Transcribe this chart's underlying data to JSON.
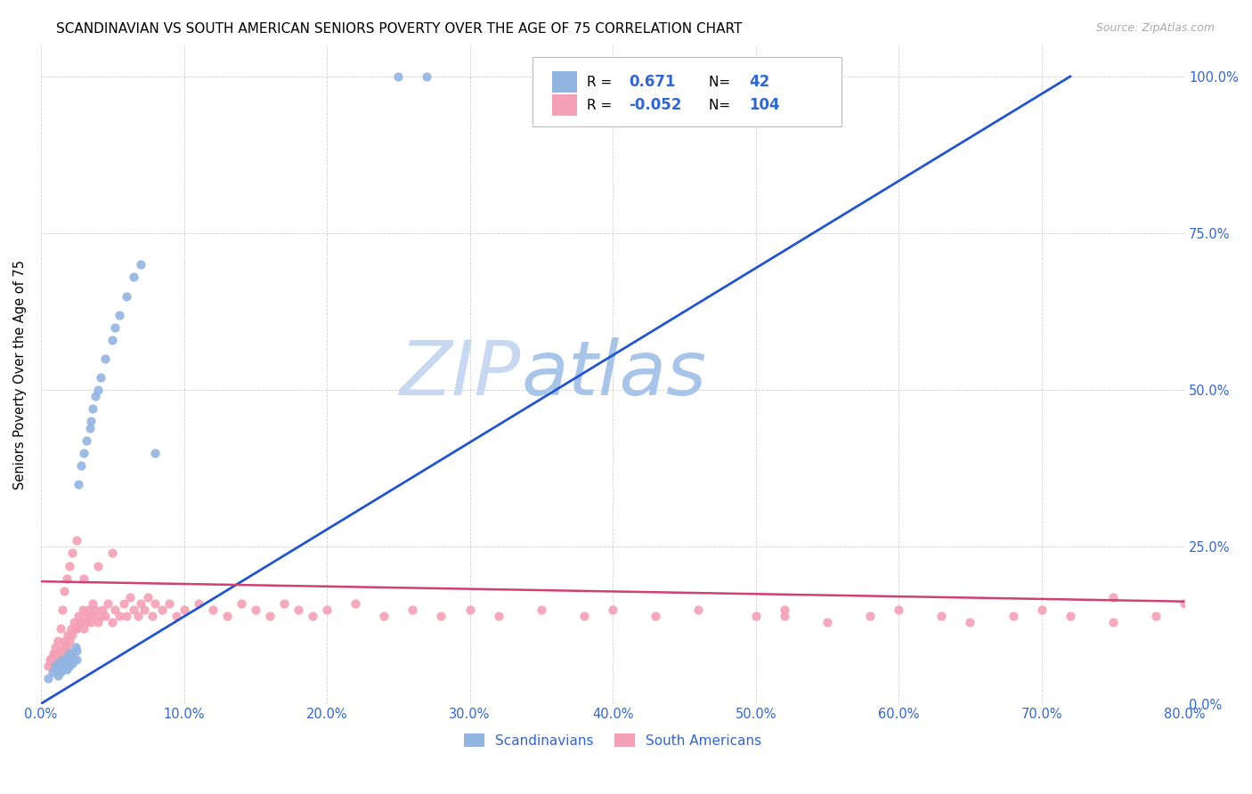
{
  "title": "SCANDINAVIAN VS SOUTH AMERICAN SENIORS POVERTY OVER THE AGE OF 75 CORRELATION CHART",
  "source": "Source: ZipAtlas.com",
  "ylabel": "Seniors Poverty Over the Age of 75",
  "xlim": [
    0,
    0.8
  ],
  "ylim": [
    0,
    1.05
  ],
  "legend_label_scand": "Scandinavians",
  "legend_label_sa": "South Americans",
  "R_scand": 0.671,
  "N_scand": 42,
  "R_sa": -0.052,
  "N_sa": 104,
  "scand_color": "#92b4e0",
  "sa_color": "#f4a0b5",
  "scand_line_color": "#2255cc",
  "sa_line_color": "#d04070",
  "watermark_zip_color": "#c8d8f0",
  "watermark_atlas_color": "#a8c4e8",
  "scand_x": [
    0.005,
    0.008,
    0.01,
    0.01,
    0.012,
    0.012,
    0.014,
    0.015,
    0.015,
    0.016,
    0.017,
    0.018,
    0.018,
    0.019,
    0.02,
    0.02,
    0.022,
    0.022,
    0.023,
    0.024,
    0.025,
    0.025,
    0.026,
    0.028,
    0.03,
    0.032,
    0.034,
    0.035,
    0.036,
    0.038,
    0.04,
    0.042,
    0.045,
    0.05,
    0.052,
    0.055,
    0.06,
    0.065,
    0.07,
    0.08,
    0.25,
    0.27
  ],
  "scand_y": [
    0.04,
    0.05,
    0.055,
    0.06,
    0.045,
    0.065,
    0.05,
    0.055,
    0.07,
    0.06,
    0.065,
    0.055,
    0.07,
    0.075,
    0.06,
    0.08,
    0.065,
    0.08,
    0.07,
    0.09,
    0.07,
    0.085,
    0.35,
    0.38,
    0.4,
    0.42,
    0.44,
    0.45,
    0.47,
    0.49,
    0.5,
    0.52,
    0.55,
    0.58,
    0.6,
    0.62,
    0.65,
    0.68,
    0.7,
    0.4,
    1.0,
    1.0
  ],
  "sa_x": [
    0.005,
    0.006,
    0.007,
    0.008,
    0.009,
    0.01,
    0.01,
    0.01,
    0.012,
    0.012,
    0.013,
    0.014,
    0.014,
    0.015,
    0.015,
    0.016,
    0.016,
    0.017,
    0.018,
    0.018,
    0.019,
    0.02,
    0.02,
    0.021,
    0.022,
    0.022,
    0.023,
    0.024,
    0.025,
    0.025,
    0.026,
    0.027,
    0.028,
    0.029,
    0.03,
    0.03,
    0.031,
    0.032,
    0.033,
    0.034,
    0.035,
    0.036,
    0.037,
    0.038,
    0.04,
    0.04,
    0.042,
    0.043,
    0.045,
    0.047,
    0.05,
    0.05,
    0.052,
    0.055,
    0.058,
    0.06,
    0.062,
    0.065,
    0.068,
    0.07,
    0.072,
    0.075,
    0.078,
    0.08,
    0.085,
    0.09,
    0.095,
    0.1,
    0.11,
    0.12,
    0.13,
    0.14,
    0.15,
    0.16,
    0.17,
    0.18,
    0.19,
    0.2,
    0.22,
    0.24,
    0.26,
    0.28,
    0.3,
    0.32,
    0.35,
    0.38,
    0.4,
    0.43,
    0.46,
    0.5,
    0.52,
    0.55,
    0.58,
    0.6,
    0.63,
    0.65,
    0.68,
    0.7,
    0.72,
    0.75,
    0.78,
    0.8,
    0.52,
    0.75
  ],
  "sa_y": [
    0.06,
    0.07,
    0.065,
    0.075,
    0.08,
    0.07,
    0.08,
    0.09,
    0.065,
    0.1,
    0.075,
    0.085,
    0.12,
    0.08,
    0.15,
    0.09,
    0.18,
    0.1,
    0.09,
    0.2,
    0.11,
    0.1,
    0.22,
    0.12,
    0.11,
    0.24,
    0.13,
    0.12,
    0.12,
    0.26,
    0.14,
    0.13,
    0.13,
    0.15,
    0.12,
    0.2,
    0.14,
    0.13,
    0.15,
    0.14,
    0.13,
    0.16,
    0.14,
    0.15,
    0.13,
    0.22,
    0.14,
    0.15,
    0.14,
    0.16,
    0.13,
    0.24,
    0.15,
    0.14,
    0.16,
    0.14,
    0.17,
    0.15,
    0.14,
    0.16,
    0.15,
    0.17,
    0.14,
    0.16,
    0.15,
    0.16,
    0.14,
    0.15,
    0.16,
    0.15,
    0.14,
    0.16,
    0.15,
    0.14,
    0.16,
    0.15,
    0.14,
    0.15,
    0.16,
    0.14,
    0.15,
    0.14,
    0.15,
    0.14,
    0.15,
    0.14,
    0.15,
    0.14,
    0.15,
    0.14,
    0.15,
    0.13,
    0.14,
    0.15,
    0.14,
    0.13,
    0.14,
    0.15,
    0.14,
    0.13,
    0.14,
    0.16,
    0.14,
    0.17
  ]
}
